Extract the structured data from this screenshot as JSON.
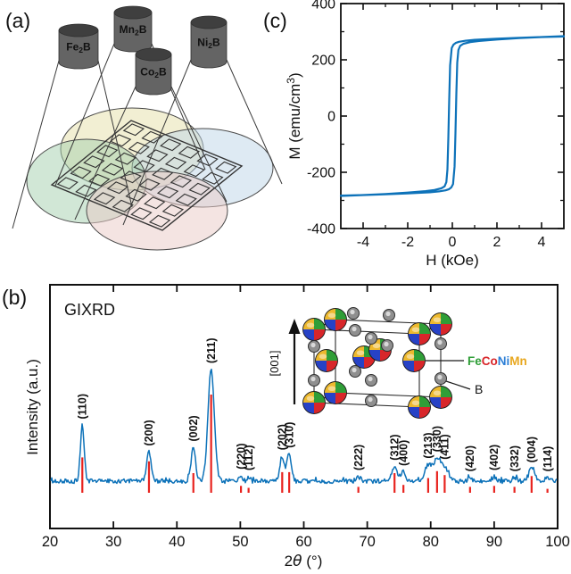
{
  "figure": {
    "panel_labels": {
      "a": "(a)",
      "b": "(b)",
      "c": "(c)"
    }
  },
  "panels": {
    "a": {
      "targets": [
        {
          "name": "Fe2B",
          "prefix": "Fe",
          "sub": "2",
          "suffix": "B",
          "label_color": "#8ec641"
        },
        {
          "name": "Mn2B",
          "prefix": "Mn",
          "sub": "2",
          "suffix": "B",
          "label_color": "#e7c03c"
        },
        {
          "name": "Co2B",
          "prefix": "Co",
          "sub": "2",
          "suffix": "B",
          "label_color": "#e99a68"
        },
        {
          "name": "Ni2B",
          "prefix": "Ni",
          "sub": "2",
          "suffix": "B",
          "label_color": "#8fb7dc"
        }
      ],
      "cylinder_body_color": "#646464",
      "cylinder_top_color": "#3f3f3f",
      "plume_colors": {
        "yellow": "#e6dfa8",
        "blue": "#bdd5e7",
        "green": "#a4cfae",
        "pink": "#e9c9c5"
      }
    },
    "b": {
      "curve_color": "#0d72b9",
      "reference_color": "#e8231e",
      "inset": {
        "direction_label": "[001]",
        "legend_metal_parts": [
          {
            "text": "Fe",
            "color": "#2f9e37"
          },
          {
            "text": "Co",
            "color": "#d8262a"
          },
          {
            "text": "Ni",
            "color": "#2c7fd6"
          },
          {
            "text": "Mn",
            "color": "#e8a820"
          }
        ],
        "legend_boron": "B",
        "sphere_quadrant_colors": {
          "nw": "#edb92e",
          "ne": "#2f9e37",
          "se": "#d8262a",
          "sw": "#2742c6"
        },
        "boron_color": "#8f8f8f"
      }
    },
    "c": {
      "curve_color": "#0d72b9"
    }
  },
  "chart_data": [
    {
      "id": "gixrd",
      "type": "line",
      "title": "GIXRD",
      "xlabel_parts": [
        "2",
        "θ",
        " (°)"
      ],
      "ylabel": "Intensity (a.u.)",
      "xlim": [
        20,
        100
      ],
      "xticks": [
        20,
        30,
        40,
        50,
        60,
        70,
        80,
        90,
        100
      ],
      "grid": false,
      "peaks": [
        {
          "hkl": "(110)",
          "two_theta": 25.1,
          "intensity": 0.5,
          "ref_intensity": 0.36,
          "width_deg": 0.3
        },
        {
          "hkl": "(200)",
          "two_theta": 35.6,
          "intensity": 0.26,
          "ref_intensity": 0.32,
          "width_deg": 0.35
        },
        {
          "hkl": "(002)",
          "two_theta": 42.6,
          "intensity": 0.3,
          "ref_intensity": 0.2,
          "width_deg": 0.35
        },
        {
          "hkl": "(211)",
          "two_theta": 45.4,
          "intensity": 1.0,
          "ref_intensity": 1.0,
          "width_deg": 0.5
        },
        {
          "hkl": "(220)",
          "two_theta": 50.1,
          "intensity": 0.05,
          "ref_intensity": 0.07,
          "width_deg": 0.25
        },
        {
          "hkl": "(112)",
          "two_theta": 51.3,
          "intensity": 0.04,
          "ref_intensity": 0.05,
          "width_deg": 0.25
        },
        {
          "hkl": "(202)",
          "two_theta": 56.6,
          "intensity": 0.22,
          "ref_intensity": 0.21,
          "width_deg": 0.35
        },
        {
          "hkl": "(310)",
          "two_theta": 57.7,
          "intensity": 0.24,
          "ref_intensity": 0.21,
          "width_deg": 0.35
        },
        {
          "hkl": "(222)",
          "two_theta": 68.6,
          "intensity": 0.04,
          "ref_intensity": 0.06,
          "width_deg": 0.35
        },
        {
          "hkl": "(312)",
          "two_theta": 74.3,
          "intensity": 0.13,
          "ref_intensity": 0.2,
          "width_deg": 0.45
        },
        {
          "hkl": "(400)",
          "two_theta": 75.7,
          "intensity": 0.08,
          "ref_intensity": 0.08,
          "width_deg": 0.35
        },
        {
          "hkl": "(213)",
          "two_theta": 79.6,
          "intensity": 0.14,
          "ref_intensity": 0.15,
          "width_deg": 0.55
        },
        {
          "hkl": "(330)",
          "two_theta": 81.0,
          "intensity": 0.19,
          "ref_intensity": 0.22,
          "width_deg": 0.55
        },
        {
          "hkl": "(411)",
          "two_theta": 82.2,
          "intensity": 0.12,
          "ref_intensity": 0.18,
          "width_deg": 0.55
        },
        {
          "hkl": "(420)",
          "two_theta": 86.2,
          "intensity": 0.03,
          "ref_intensity": 0.06,
          "width_deg": 0.35
        },
        {
          "hkl": "(402)",
          "two_theta": 90.0,
          "intensity": 0.04,
          "ref_intensity": 0.07,
          "width_deg": 0.35
        },
        {
          "hkl": "(332)",
          "two_theta": 93.2,
          "intensity": 0.03,
          "ref_intensity": 0.06,
          "width_deg": 0.35
        },
        {
          "hkl": "(004)",
          "two_theta": 95.9,
          "intensity": 0.11,
          "ref_intensity": 0.17,
          "width_deg": 0.45
        },
        {
          "hkl": "(114)",
          "two_theta": 98.4,
          "intensity": 0.03,
          "ref_intensity": 0.04,
          "width_deg": 0.35
        }
      ]
    },
    {
      "id": "hysteresis",
      "type": "line",
      "xlabel": "H (kOe)",
      "ylabel_parts": {
        "prefix": "M (emu/cm",
        "sup": "3",
        "suffix": ")"
      },
      "xlim": [
        -5,
        5
      ],
      "ylim": [
        -400,
        400
      ],
      "xticks": [
        -4,
        -2,
        0,
        2,
        4
      ],
      "yticks": [
        400,
        200,
        0,
        -200,
        -400
      ],
      "grid": false,
      "saturation_magnetization_emu_cm3": 284,
      "coercive_field_kOe": 0.15,
      "ascending_branch": [
        [
          -5,
          -283
        ],
        [
          -4,
          -281
        ],
        [
          -3,
          -278
        ],
        [
          -2,
          -275
        ],
        [
          -1,
          -271
        ],
        [
          -0.6,
          -268
        ],
        [
          -0.3,
          -264
        ],
        [
          -0.15,
          -260
        ],
        [
          -0.05,
          -254
        ],
        [
          0.03,
          -242
        ],
        [
          0.1,
          -180
        ],
        [
          0.14,
          -60
        ],
        [
          0.18,
          80
        ],
        [
          0.22,
          190
        ],
        [
          0.27,
          235
        ],
        [
          0.35,
          250
        ],
        [
          0.5,
          257
        ],
        [
          0.8,
          263
        ],
        [
          1.2,
          267
        ],
        [
          2,
          272
        ],
        [
          3,
          277
        ],
        [
          4,
          281
        ],
        [
          5,
          284
        ]
      ]
    }
  ]
}
